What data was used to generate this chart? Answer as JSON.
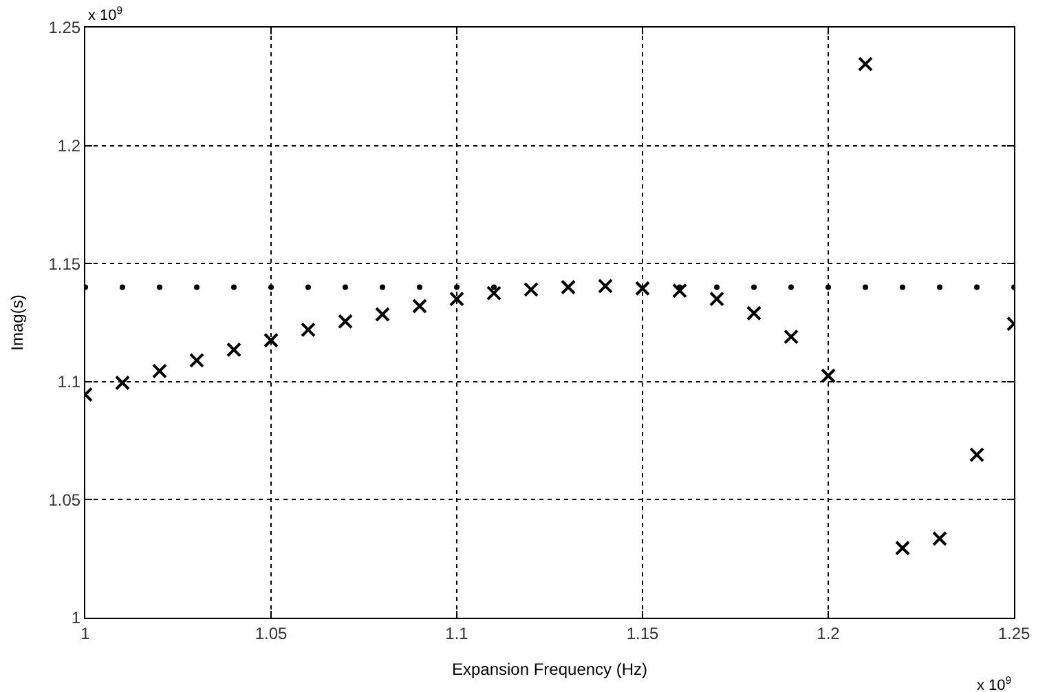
{
  "chart_data": {
    "type": "scatter",
    "xlabel": "Expansion Frequency (Hz)",
    "ylabel": "Imag(s)",
    "annotations": [
      "x 10$^{9}$",
      "x 10$^{9}$"
    ],
    "x": [
      1.0,
      1.01,
      1.02,
      1.03,
      1.04,
      1.05,
      1.06,
      1.07,
      1.08,
      1.09,
      1.1,
      1.11,
      1.12,
      1.13,
      1.14,
      1.15,
      1.16,
      1.17,
      1.18,
      1.19,
      1.2,
      1.21,
      1.22,
      1.23,
      1.24,
      1.25
    ],
    "series": [
      {
        "color": "#000000",
        "marker": "circle",
        "values": [
          1.14,
          1.14,
          1.14,
          1.14,
          1.14,
          1.14,
          1.14,
          1.14,
          1.14,
          1.14,
          1.14,
          1.14,
          null,
          null,
          null,
          null,
          1.14,
          1.14,
          1.14,
          1.14,
          1.14,
          1.14,
          1.14,
          1.14,
          1.14,
          1.14
        ]
      },
      {
        "color": "#000000",
        "marker": "cross",
        "values": [
          1.0945,
          1.0995,
          1.1045,
          1.109,
          1.1135,
          1.1175,
          1.122,
          1.1255,
          1.1285,
          1.132,
          1.135,
          1.1375,
          1.139,
          1.14,
          1.1405,
          1.1395,
          1.1385,
          1.135,
          1.129,
          1.119,
          1.1025,
          1.2345,
          1.0295,
          1.0335,
          1.069,
          1.1245
        ]
      }
    ],
    "xlim": [
      1,
      1.25
    ],
    "xticks": [
      1,
      1.05,
      1.1,
      1.15,
      1.2,
      1.25
    ],
    "ylim": [
      1,
      1.25
    ],
    "yticks": [
      1,
      1.05,
      1.1,
      1.15,
      1.2,
      1.25
    ],
    "grid": true
  }
}
